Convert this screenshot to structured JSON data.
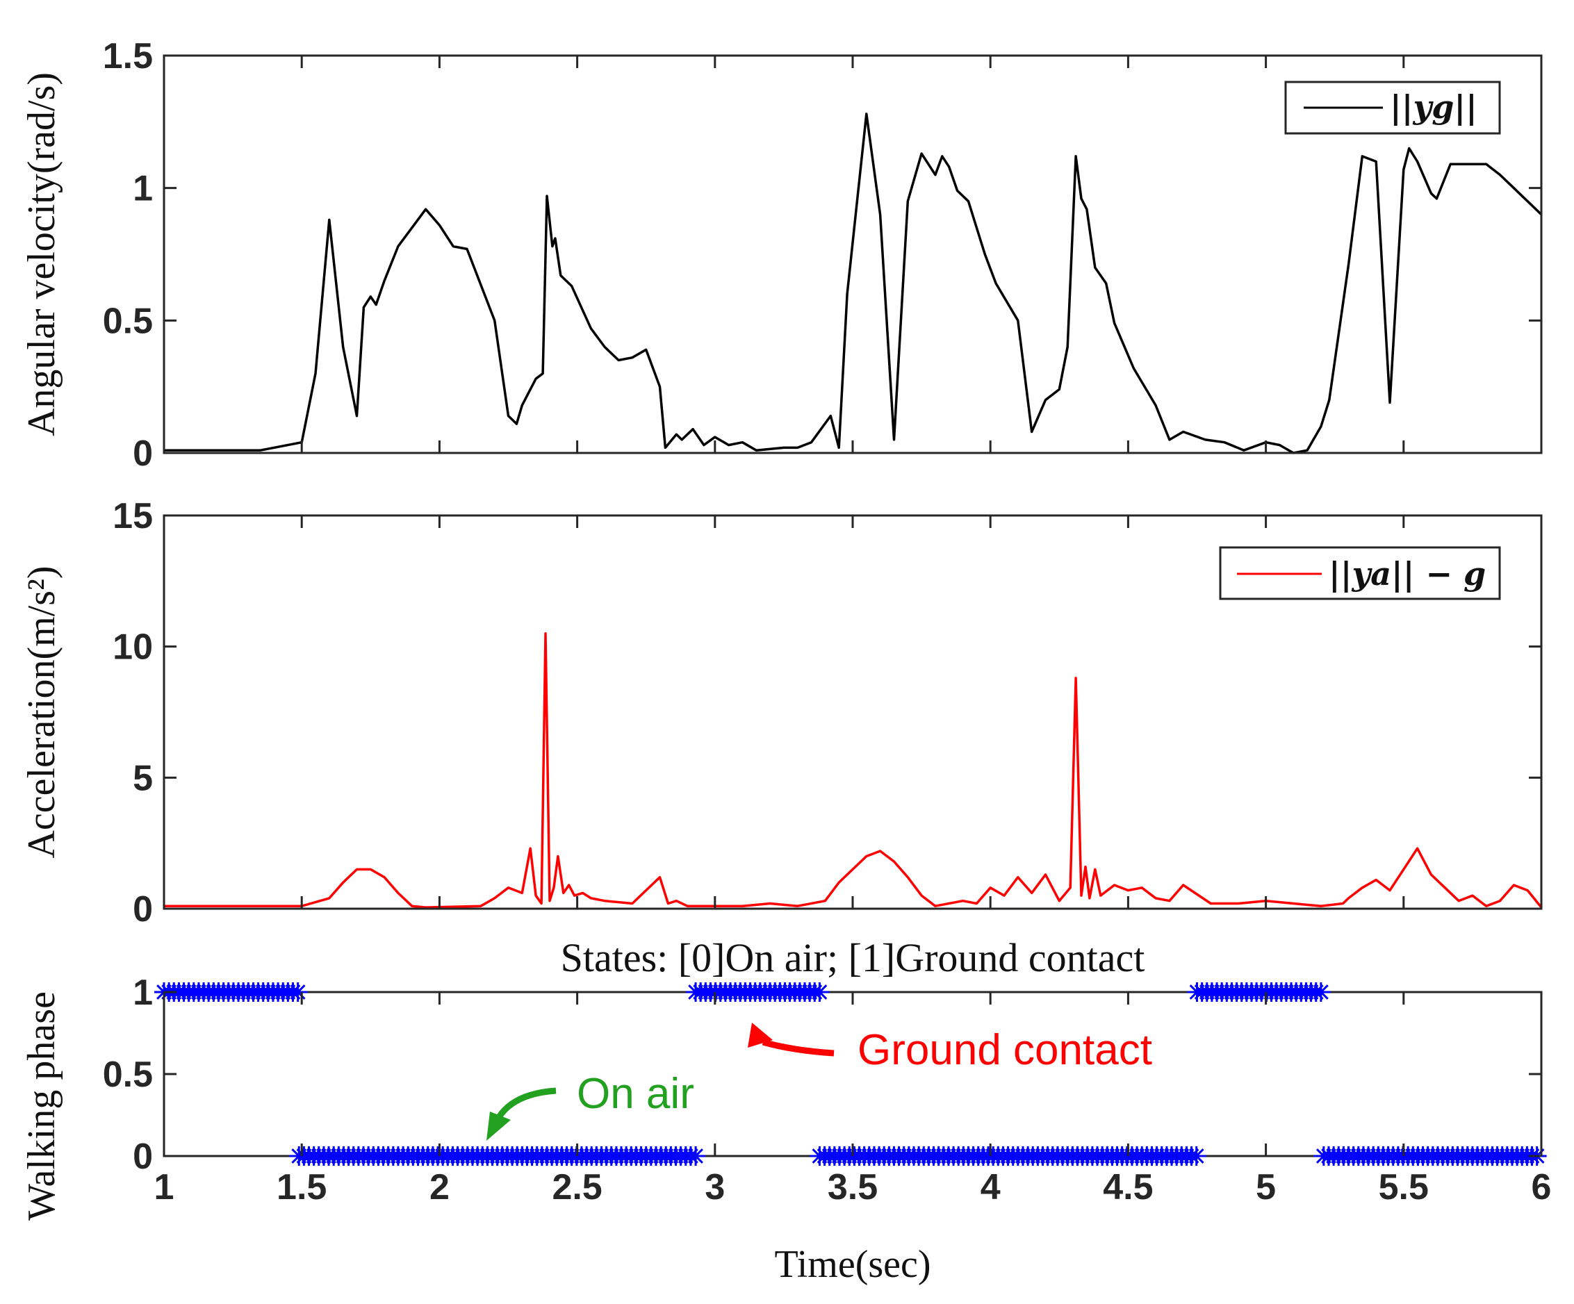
{
  "chart_data": [
    {
      "type": "line",
      "ylabel": "Angular velocity(rad/s)",
      "xlim": [
        1,
        6
      ],
      "ylim": [
        0,
        1.5
      ],
      "yticks": [
        "0",
        "0.5",
        "1",
        "1.5"
      ],
      "legend": {
        "label": "||yg||",
        "position": "top-right"
      },
      "series": [
        {
          "name": "||yg||",
          "color": "#000000",
          "x": [
            1.0,
            1.35,
            1.5,
            1.55,
            1.6,
            1.65,
            1.7,
            1.725,
            1.75,
            1.77,
            1.8,
            1.85,
            1.95,
            2.0,
            2.05,
            2.1,
            2.2,
            2.25,
            2.28,
            2.3,
            2.35,
            2.375,
            2.39,
            2.41,
            2.42,
            2.44,
            2.48,
            2.55,
            2.6,
            2.65,
            2.7,
            2.75,
            2.8,
            2.82,
            2.86,
            2.88,
            2.92,
            2.96,
            3.0,
            3.05,
            3.1,
            3.15,
            3.25,
            3.3,
            3.35,
            3.42,
            3.45,
            3.48,
            3.55,
            3.6,
            3.65,
            3.7,
            3.75,
            3.8,
            3.825,
            3.85,
            3.88,
            3.92,
            3.95,
            3.98,
            4.02,
            4.1,
            4.15,
            4.2,
            4.25,
            4.28,
            4.31,
            4.33,
            4.35,
            4.38,
            4.42,
            4.45,
            4.52,
            4.6,
            4.65,
            4.7,
            4.78,
            4.85,
            4.92,
            5.0,
            5.05,
            5.1,
            5.15,
            5.2,
            5.23,
            5.3,
            5.35,
            5.4,
            5.45,
            5.5,
            5.52,
            5.55,
            5.6,
            5.62,
            5.67,
            5.72,
            5.8,
            5.85,
            5.9,
            5.95,
            6.0
          ],
          "y": [
            0.01,
            0.01,
            0.04,
            0.3,
            0.88,
            0.4,
            0.14,
            0.55,
            0.59,
            0.56,
            0.65,
            0.78,
            0.92,
            0.86,
            0.78,
            0.77,
            0.5,
            0.14,
            0.11,
            0.18,
            0.28,
            0.3,
            0.97,
            0.78,
            0.81,
            0.67,
            0.63,
            0.47,
            0.4,
            0.35,
            0.36,
            0.39,
            0.25,
            0.02,
            0.07,
            0.05,
            0.09,
            0.03,
            0.06,
            0.03,
            0.04,
            0.01,
            0.02,
            0.02,
            0.04,
            0.14,
            0.02,
            0.6,
            1.28,
            0.9,
            0.05,
            0.95,
            1.13,
            1.05,
            1.12,
            1.08,
            0.99,
            0.95,
            0.85,
            0.75,
            0.64,
            0.5,
            0.08,
            0.2,
            0.24,
            0.4,
            1.12,
            0.96,
            0.92,
            0.7,
            0.64,
            0.49,
            0.32,
            0.18,
            0.05,
            0.08,
            0.05,
            0.04,
            0.01,
            0.04,
            0.03,
            0.0,
            0.01,
            0.1,
            0.2,
            0.71,
            1.12,
            1.1,
            0.19,
            1.07,
            1.15,
            1.1,
            0.98,
            0.96,
            1.09,
            1.09,
            1.09,
            1.05,
            1.0,
            0.95,
            0.9
          ]
        }
      ]
    },
    {
      "type": "line",
      "ylabel": "Acceleration(m/s²)",
      "xlim": [
        1,
        6
      ],
      "ylim": [
        0,
        15
      ],
      "yticks": [
        "0",
        "5",
        "10",
        "15"
      ],
      "legend": {
        "label": "||ya|| − g",
        "position": "top-right"
      },
      "series": [
        {
          "name": "||ya|| − g",
          "color": "#ff0000",
          "x": [
            1.0,
            1.5,
            1.6,
            1.65,
            1.7,
            1.75,
            1.8,
            1.85,
            1.9,
            1.95,
            2.15,
            2.2,
            2.25,
            2.3,
            2.33,
            2.35,
            2.37,
            2.385,
            2.4,
            2.415,
            2.43,
            2.45,
            2.47,
            2.49,
            2.52,
            2.55,
            2.6,
            2.7,
            2.8,
            2.83,
            2.86,
            2.9,
            3.0,
            3.1,
            3.2,
            3.3,
            3.4,
            3.45,
            3.5,
            3.55,
            3.6,
            3.65,
            3.7,
            3.75,
            3.8,
            3.9,
            3.95,
            4.0,
            4.05,
            4.1,
            4.15,
            4.2,
            4.25,
            4.29,
            4.31,
            4.33,
            4.345,
            4.36,
            4.38,
            4.4,
            4.45,
            4.5,
            4.55,
            4.6,
            4.65,
            4.7,
            4.8,
            4.9,
            5.0,
            5.1,
            5.2,
            5.28,
            5.3,
            5.35,
            5.4,
            5.45,
            5.5,
            5.55,
            5.6,
            5.65,
            5.7,
            5.75,
            5.8,
            5.85,
            5.9,
            5.95,
            6.0
          ],
          "y": [
            0.1,
            0.1,
            0.4,
            1.0,
            1.5,
            1.5,
            1.2,
            0.6,
            0.1,
            0.05,
            0.1,
            0.4,
            0.8,
            0.6,
            2.3,
            0.5,
            0.2,
            10.5,
            0.3,
            0.8,
            2.0,
            0.6,
            0.9,
            0.5,
            0.6,
            0.4,
            0.3,
            0.2,
            1.2,
            0.2,
            0.3,
            0.1,
            0.1,
            0.1,
            0.2,
            0.1,
            0.3,
            1.0,
            1.5,
            2.0,
            2.2,
            1.8,
            1.2,
            0.5,
            0.1,
            0.3,
            0.2,
            0.8,
            0.5,
            1.2,
            0.6,
            1.3,
            0.3,
            0.8,
            8.8,
            0.5,
            1.6,
            0.4,
            1.5,
            0.5,
            0.9,
            0.7,
            0.8,
            0.4,
            0.3,
            0.9,
            0.2,
            0.2,
            0.3,
            0.2,
            0.1,
            0.2,
            0.4,
            0.8,
            1.1,
            0.7,
            1.5,
            2.3,
            1.3,
            0.8,
            0.3,
            0.5,
            0.1,
            0.3,
            0.9,
            0.7,
            0.05
          ]
        }
      ]
    },
    {
      "type": "scatter",
      "title": "States:  [0]On air; [1]Ground contact",
      "xlabel": "Time(sec)",
      "ylabel": "Walking phase",
      "xlim": [
        1,
        6
      ],
      "ylim": [
        0,
        1
      ],
      "yticks": [
        "0",
        "0.5",
        "1"
      ],
      "xticks": [
        "1",
        "1.5",
        "2",
        "2.5",
        "3",
        "3.5",
        "4",
        "4.5",
        "5",
        "5.5",
        "6"
      ],
      "marker": "*",
      "marker_color": "#0000ff",
      "segments": [
        {
          "state": 1,
          "x_start": 1.0,
          "x_end": 1.49
        },
        {
          "state": 0,
          "x_start": 1.49,
          "x_end": 2.93
        },
        {
          "state": 1,
          "x_start": 2.93,
          "x_end": 3.38
        },
        {
          "state": 0,
          "x_start": 3.38,
          "x_end": 4.75
        },
        {
          "state": 1,
          "x_start": 4.75,
          "x_end": 5.21
        },
        {
          "state": 0,
          "x_start": 5.21,
          "x_end": 6.0
        }
      ],
      "annotations": [
        {
          "text": "Ground contact",
          "color": "#ff0000",
          "points_to": [
            3.13,
            1
          ]
        },
        {
          "text": "On air",
          "color": "#22a020",
          "points_to": [
            2.18,
            0
          ]
        }
      ]
    }
  ]
}
